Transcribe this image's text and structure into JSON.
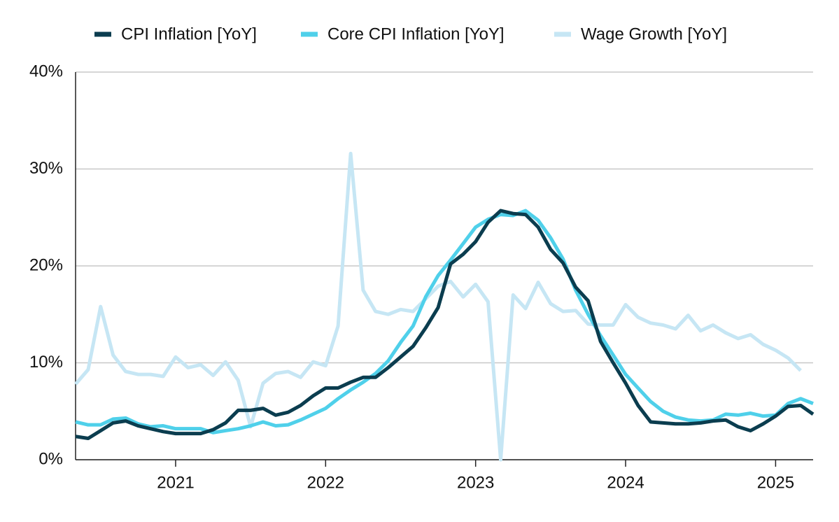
{
  "chart_data": {
    "type": "line",
    "x": [
      2020.333,
      2020.417,
      2020.5,
      2020.583,
      2020.667,
      2020.75,
      2020.833,
      2020.917,
      2021,
      2021.083,
      2021.167,
      2021.25,
      2021.333,
      2021.417,
      2021.5,
      2021.583,
      2021.667,
      2021.75,
      2021.833,
      2021.917,
      2022,
      2022.083,
      2022.167,
      2022.25,
      2022.333,
      2022.417,
      2022.5,
      2022.583,
      2022.667,
      2022.75,
      2022.833,
      2022.917,
      2023,
      2023.083,
      2023.167,
      2023.25,
      2023.333,
      2023.417,
      2023.5,
      2023.583,
      2023.667,
      2023.75,
      2023.833,
      2023.917,
      2024,
      2024.083,
      2024.167,
      2024.25,
      2024.333,
      2024.417,
      2024.5,
      2024.583,
      2024.667,
      2024.75,
      2024.833,
      2024.917,
      2025,
      2025.083,
      2025.167,
      2025.25
    ],
    "series": [
      {
        "name": "CPI Inflation [YoY]",
        "color": "#0b3d4f",
        "values": [
          2.4,
          2.2,
          3.0,
          3.8,
          4.0,
          3.5,
          3.2,
          2.9,
          2.7,
          2.7,
          2.7,
          3.1,
          3.8,
          5.1,
          5.1,
          5.3,
          4.6,
          4.9,
          5.6,
          6.6,
          7.4,
          7.4,
          8.0,
          8.5,
          8.5,
          9.5,
          10.6,
          11.7,
          13.6,
          15.7,
          20.2,
          21.2,
          22.5,
          24.5,
          25.7,
          25.4,
          25.3,
          24.0,
          21.7,
          20.3,
          17.8,
          16.4,
          12.2,
          10.0,
          7.9,
          5.6,
          3.9,
          3.8,
          3.7,
          3.7,
          3.8,
          4.0,
          4.1,
          3.4,
          3.0,
          3.7,
          4.5,
          5.5,
          5.6,
          4.7
        ]
      },
      {
        "name": "Core CPI Inflation [YoY]",
        "color": "#4fd0ea",
        "values": [
          3.9,
          3.6,
          3.6,
          4.2,
          4.3,
          3.7,
          3.4,
          3.5,
          3.2,
          3.2,
          3.2,
          2.8,
          3.0,
          3.2,
          3.5,
          3.9,
          3.5,
          3.6,
          4.1,
          4.7,
          5.3,
          6.3,
          7.2,
          8.0,
          8.9,
          10.2,
          12.1,
          13.8,
          16.8,
          19.0,
          20.6,
          22.3,
          24.0,
          24.8,
          25.3,
          25.2,
          25.7,
          24.7,
          22.9,
          20.7,
          17.5,
          15.0,
          12.8,
          10.8,
          8.8,
          7.4,
          6.0,
          5.0,
          4.4,
          4.1,
          4.0,
          4.1,
          4.7,
          4.6,
          4.8,
          4.5,
          4.6,
          5.8,
          6.3,
          5.8
        ]
      },
      {
        "name": "Wage Growth [YoY]",
        "color": "#c6e6f4",
        "values": [
          7.8,
          9.3,
          15.8,
          10.8,
          9.1,
          8.8,
          8.8,
          8.6,
          10.6,
          9.5,
          9.8,
          8.7,
          10.1,
          8.2,
          3.4,
          7.9,
          8.9,
          9.1,
          8.5,
          10.1,
          9.7,
          13.8,
          31.6,
          17.5,
          15.3,
          15.0,
          15.5,
          15.3,
          16.6,
          17.9,
          18.4,
          16.8,
          18.1,
          16.3,
          0.0,
          17.0,
          15.6,
          18.3,
          16.1,
          15.3,
          15.4,
          14.0,
          13.9,
          13.9,
          16.0,
          14.7,
          14.1,
          13.9,
          13.5,
          14.9,
          13.3,
          13.9,
          13.1,
          12.5,
          12.9,
          11.9,
          11.3,
          10.5,
          9.2,
          null
        ]
      }
    ],
    "xlim": [
      2020.333,
      2025.25
    ],
    "xticks": [
      2021,
      2022,
      2023,
      2024,
      2025
    ],
    "ylim": [
      0,
      40
    ],
    "yticks": [
      {
        "value": 0,
        "label": "0%"
      },
      {
        "value": 10,
        "label": "10%"
      },
      {
        "value": 20,
        "label": "20%"
      },
      {
        "value": 30,
        "label": "30%"
      },
      {
        "value": 40,
        "label": "40%"
      }
    ],
    "grid": true,
    "legend": "top"
  }
}
